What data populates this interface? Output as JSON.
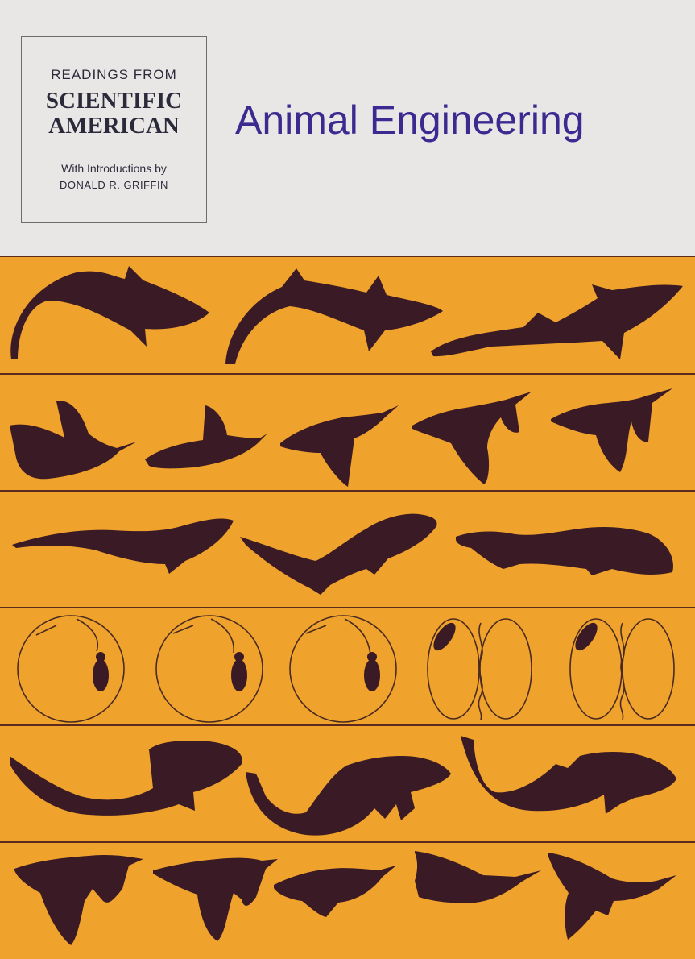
{
  "cover": {
    "series_line1": "READINGS FROM",
    "series_line2": "SCIENTIFIC",
    "series_line3": "AMERICAN",
    "intro_line1": "With Introductions by",
    "intro_line2": "DONALD R. GRIFFIN",
    "title": "Animal Engineering"
  },
  "colors": {
    "background": "#e9e7e6",
    "orange": "#efa22c",
    "silhouette": "#3a1a24",
    "title": "#3b2a90"
  }
}
